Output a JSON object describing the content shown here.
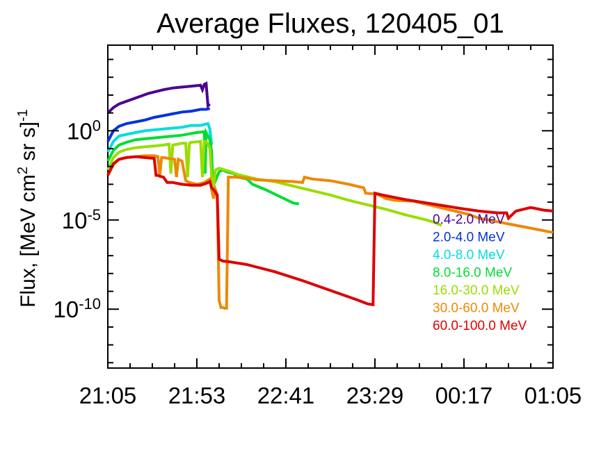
{
  "chart_data": {
    "type": "line",
    "title": "Average Fluxes, 120405_01",
    "xlabel": "",
    "ylabel_main": "Flux, [MeV cm",
    "ylabel_sup1": "2",
    "ylabel_mid": " sr s]",
    "ylabel_sup2": "-1",
    "y_scale": "log",
    "x_unit": "minutes after 21:05",
    "xlim": [
      0,
      240
    ],
    "ylim_exp": [
      -13.3,
      4.8
    ],
    "x_ticks": [
      {
        "label": "21:05",
        "value": 0
      },
      {
        "label": "21:53",
        "value": 48
      },
      {
        "label": "22:41",
        "value": 96
      },
      {
        "label": "23:29",
        "value": 144
      },
      {
        "label": "00:17",
        "value": 192
      },
      {
        "label": "01:05",
        "value": 240
      }
    ],
    "y_ticks": [
      {
        "base": "10",
        "exp": "0",
        "value": 0
      },
      {
        "base": "10",
        "exp": "-5",
        "value": -5
      },
      {
        "base": "10",
        "exp": "-10",
        "value": -10
      }
    ],
    "legend_position": "right",
    "series": [
      {
        "name": "0.4-2.0 MeV",
        "color": "#4b0092",
        "points": [
          [
            0,
            1.0
          ],
          [
            3,
            1.3
          ],
          [
            6,
            1.5
          ],
          [
            10,
            1.65
          ],
          [
            14,
            1.8
          ],
          [
            18,
            1.95
          ],
          [
            22,
            2.1
          ],
          [
            26,
            2.2
          ],
          [
            30,
            2.3
          ],
          [
            35,
            2.4
          ],
          [
            40,
            2.45
          ],
          [
            45,
            2.5
          ],
          [
            50,
            2.55
          ],
          [
            51,
            2.3
          ],
          [
            52,
            2.6
          ],
          [
            53,
            2.65
          ],
          [
            53.5,
            2.0
          ],
          [
            54,
            1.4
          ],
          [
            55,
            1.5
          ]
        ]
      },
      {
        "name": "2.0-4.0 MeV",
        "color": "#0033dd",
        "points": [
          [
            0,
            -0.6
          ],
          [
            3,
            0.0
          ],
          [
            6,
            0.25
          ],
          [
            10,
            0.4
          ],
          [
            15,
            0.5
          ],
          [
            20,
            0.6
          ],
          [
            25,
            0.75
          ],
          [
            30,
            0.85
          ],
          [
            35,
            0.95
          ],
          [
            40,
            1.05
          ],
          [
            45,
            1.1
          ],
          [
            50,
            1.2
          ],
          [
            53,
            1.2
          ],
          [
            55,
            1.25
          ]
        ]
      },
      {
        "name": "4.0-8.0 MeV",
        "color": "#00dddd",
        "points": [
          [
            0,
            -1.2
          ],
          [
            3,
            -0.6
          ],
          [
            6,
            -0.3
          ],
          [
            10,
            -0.2
          ],
          [
            15,
            -0.1
          ],
          [
            20,
            0.0
          ],
          [
            25,
            0.05
          ],
          [
            30,
            0.1
          ],
          [
            35,
            0.15
          ],
          [
            40,
            0.2
          ],
          [
            45,
            0.3
          ],
          [
            50,
            0.3
          ],
          [
            54,
            0.4
          ],
          [
            55,
            0.1
          ],
          [
            56,
            -0.8
          ]
        ]
      },
      {
        "name": "8.0-16.0 MeV",
        "color": "#00dd33",
        "points": [
          [
            0,
            -1.7
          ],
          [
            3,
            -1.1
          ],
          [
            6,
            -0.8
          ],
          [
            10,
            -0.65
          ],
          [
            15,
            -0.5
          ],
          [
            20,
            -0.45
          ],
          [
            25,
            -0.4
          ],
          [
            30,
            -0.35
          ],
          [
            35,
            -0.3
          ],
          [
            40,
            -0.25
          ],
          [
            45,
            -0.15
          ],
          [
            48,
            -0.1
          ],
          [
            52,
            -0.05
          ],
          [
            52.5,
            -2.4
          ],
          [
            53,
            -0.1
          ],
          [
            54,
            -0.3
          ],
          [
            55,
            -0.5
          ],
          [
            56,
            -1.2
          ],
          [
            56.5,
            -2.8
          ],
          [
            57,
            -2.5
          ],
          [
            58,
            -2.8
          ],
          [
            60,
            -2.3
          ],
          [
            62,
            -2.2
          ],
          [
            64,
            -2.3
          ],
          [
            68,
            -2.4
          ],
          [
            70,
            -2.6
          ],
          [
            75,
            -2.7
          ],
          [
            78,
            -3.0
          ],
          [
            85,
            -3.3
          ],
          [
            90,
            -3.55
          ],
          [
            95,
            -3.8
          ],
          [
            100,
            -4.05
          ],
          [
            103,
            -4.1
          ]
        ]
      },
      {
        "name": "16.0-30.0 MeV",
        "color": "#99dd00",
        "points": [
          [
            0,
            -2.2
          ],
          [
            3,
            -1.5
          ],
          [
            6,
            -1.2
          ],
          [
            10,
            -1.05
          ],
          [
            15,
            -0.95
          ],
          [
            20,
            -0.9
          ],
          [
            25,
            -0.85
          ],
          [
            30,
            -0.8
          ],
          [
            33,
            -0.75
          ],
          [
            34,
            -2.4
          ],
          [
            35,
            -0.8
          ],
          [
            40,
            -0.7
          ],
          [
            42,
            -0.7
          ],
          [
            43,
            -2.6
          ],
          [
            44,
            -0.7
          ],
          [
            45,
            -0.65
          ],
          [
            50,
            -0.6
          ],
          [
            51,
            -2.6
          ],
          [
            52,
            -0.6
          ],
          [
            53,
            -0.6
          ],
          [
            54,
            -0.75
          ],
          [
            55,
            -1.0
          ],
          [
            56,
            -2.6
          ],
          [
            57,
            -3.2
          ],
          [
            58,
            -2.2
          ],
          [
            60,
            -2.1
          ],
          [
            65,
            -2.25
          ],
          [
            70,
            -2.45
          ],
          [
            80,
            -2.7
          ],
          [
            90,
            -2.85
          ],
          [
            100,
            -3.1
          ],
          [
            110,
            -3.35
          ],
          [
            120,
            -3.6
          ],
          [
            130,
            -3.9
          ],
          [
            140,
            -4.15
          ],
          [
            150,
            -4.4
          ],
          [
            160,
            -4.7
          ],
          [
            170,
            -4.95
          ],
          [
            175,
            -5.1
          ],
          [
            180,
            -5.3
          ]
        ]
      },
      {
        "name": "30.0-60.0 MeV",
        "color": "#ee8800",
        "points": [
          [
            0,
            -2.5
          ],
          [
            3,
            -1.9
          ],
          [
            6,
            -1.6
          ],
          [
            10,
            -1.5
          ],
          [
            15,
            -1.45
          ],
          [
            20,
            -1.4
          ],
          [
            25,
            -1.4
          ],
          [
            27,
            -1.45
          ],
          [
            28,
            -2.5
          ],
          [
            29,
            -1.5
          ],
          [
            30,
            -1.5
          ],
          [
            36,
            -1.6
          ],
          [
            37,
            -2.6
          ],
          [
            38,
            -1.6
          ],
          [
            40,
            -1.7
          ],
          [
            42,
            -2.8
          ],
          [
            44,
            -2.9
          ],
          [
            48,
            -3.0
          ],
          [
            52,
            -2.9
          ],
          [
            55,
            -2.7
          ],
          [
            56,
            -3.3
          ],
          [
            57,
            -3.8
          ],
          [
            58,
            -3.3
          ],
          [
            59,
            -3.6
          ],
          [
            60,
            -9.5
          ],
          [
            61,
            -9.9
          ],
          [
            62,
            -9.9
          ],
          [
            63,
            -9.95
          ],
          [
            64,
            -9.95
          ],
          [
            65,
            -2.6
          ],
          [
            70,
            -2.6
          ],
          [
            75,
            -2.65
          ],
          [
            80,
            -2.75
          ],
          [
            90,
            -2.8
          ],
          [
            100,
            -2.85
          ],
          [
            105,
            -2.9
          ],
          [
            106,
            -2.6
          ],
          [
            110,
            -2.7
          ],
          [
            120,
            -2.8
          ],
          [
            130,
            -3.0
          ],
          [
            138,
            -3.2
          ],
          [
            139,
            -3.5
          ],
          [
            145,
            -3.55
          ],
          [
            150,
            -3.8
          ],
          [
            155,
            -3.9
          ],
          [
            165,
            -3.95
          ],
          [
            175,
            -4.2
          ],
          [
            185,
            -4.45
          ],
          [
            195,
            -4.7
          ],
          [
            200,
            -4.9
          ],
          [
            210,
            -5.1
          ],
          [
            220,
            -5.3
          ],
          [
            230,
            -5.5
          ],
          [
            240,
            -5.7
          ]
        ]
      },
      {
        "name": "60.0-100.0 MeV",
        "color": "#dd0000",
        "points": [
          [
            0,
            -2.5
          ],
          [
            3,
            -1.85
          ],
          [
            6,
            -1.6
          ],
          [
            10,
            -1.5
          ],
          [
            15,
            -1.45
          ],
          [
            20,
            -1.5
          ],
          [
            25,
            -1.55
          ],
          [
            26,
            -2.5
          ],
          [
            27,
            -2.5
          ],
          [
            28,
            -2.55
          ],
          [
            30,
            -2.6
          ],
          [
            32,
            -2.9
          ],
          [
            35,
            -2.9
          ],
          [
            40,
            -3.0
          ],
          [
            45,
            -3.05
          ],
          [
            50,
            -3.05
          ],
          [
            53,
            -2.95
          ],
          [
            55,
            -2.85
          ],
          [
            56,
            -3.2
          ],
          [
            57,
            -3.3
          ],
          [
            58,
            -3.45
          ],
          [
            59,
            -3.6
          ],
          [
            60,
            -7.2
          ],
          [
            62,
            -7.3
          ],
          [
            66,
            -7.35
          ],
          [
            75,
            -7.5
          ],
          [
            90,
            -7.9
          ],
          [
            105,
            -8.4
          ],
          [
            120,
            -8.95
          ],
          [
            135,
            -9.5
          ],
          [
            140,
            -9.7
          ],
          [
            143,
            -9.75
          ],
          [
            144,
            -3.5
          ],
          [
            148,
            -3.6
          ],
          [
            160,
            -3.85
          ],
          [
            175,
            -4.1
          ],
          [
            190,
            -4.35
          ],
          [
            200,
            -4.5
          ],
          [
            205,
            -4.55
          ],
          [
            210,
            -4.6
          ],
          [
            215,
            -4.6
          ],
          [
            216,
            -4.9
          ],
          [
            220,
            -4.5
          ],
          [
            228,
            -4.3
          ],
          [
            235,
            -4.45
          ],
          [
            240,
            -4.5
          ]
        ]
      }
    ]
  }
}
